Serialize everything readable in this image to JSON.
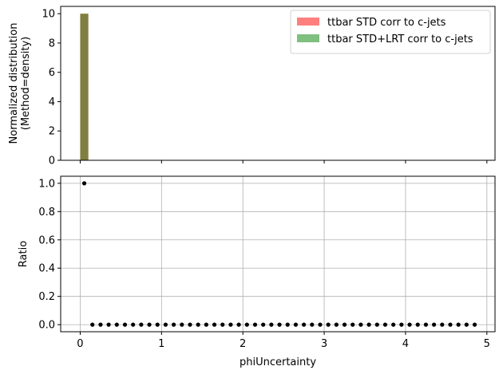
{
  "chart_data": [
    {
      "type": "bar",
      "panel": "top",
      "xlabel": "",
      "ylabel_lines": [
        "Normalized distribution",
        "(Method=density)"
      ],
      "xlim": [
        -0.24,
        5.1
      ],
      "ylim": [
        0,
        10.5
      ],
      "yticks": [
        0,
        2,
        4,
        6,
        8,
        10
      ],
      "xticks": [
        0,
        1,
        2,
        3,
        4,
        5
      ],
      "show_xtick_labels": false,
      "bin_width": 0.1,
      "legend": {
        "placement": "top-right"
      },
      "series": [
        {
          "name": "ttbar STD corr to c-jets",
          "color": "#ff0000",
          "alpha": 0.5,
          "bins": [
            {
              "x0": 0.0,
              "x1": 0.1,
              "value": 10
            }
          ]
        },
        {
          "name": "ttbar STD+LRT corr to c-jets",
          "color": "#008000",
          "alpha": 0.5,
          "bins": [
            {
              "x0": 0.0,
              "x1": 0.1,
              "value": 10
            }
          ]
        }
      ],
      "overlap_color": "#808040"
    },
    {
      "type": "scatter",
      "panel": "bottom",
      "xlabel": "phiUncertainty",
      "ylabel": "Ratio",
      "xlim": [
        -0.24,
        5.1
      ],
      "ylim": [
        -0.05,
        1.05
      ],
      "xticks": [
        0,
        1,
        2,
        3,
        4,
        5
      ],
      "yticks": [
        0.0,
        0.2,
        0.4,
        0.6,
        0.8,
        1.0
      ],
      "ytick_labels": [
        "0.0",
        "0.2",
        "0.4",
        "0.6",
        "0.8",
        "1.0"
      ],
      "grid": true,
      "marker_color": "#000000",
      "points": [
        {
          "x": 0.05,
          "y": 1.0
        },
        {
          "x": 0.15,
          "y": 0.0
        },
        {
          "x": 0.25,
          "y": 0.0
        },
        {
          "x": 0.35,
          "y": 0.0
        },
        {
          "x": 0.45,
          "y": 0.0
        },
        {
          "x": 0.55,
          "y": 0.0
        },
        {
          "x": 0.65,
          "y": 0.0
        },
        {
          "x": 0.75,
          "y": 0.0
        },
        {
          "x": 0.85,
          "y": 0.0
        },
        {
          "x": 0.95,
          "y": 0.0
        },
        {
          "x": 1.05,
          "y": 0.0
        },
        {
          "x": 1.15,
          "y": 0.0
        },
        {
          "x": 1.25,
          "y": 0.0
        },
        {
          "x": 1.35,
          "y": 0.0
        },
        {
          "x": 1.45,
          "y": 0.0
        },
        {
          "x": 1.55,
          "y": 0.0
        },
        {
          "x": 1.65,
          "y": 0.0
        },
        {
          "x": 1.75,
          "y": 0.0
        },
        {
          "x": 1.85,
          "y": 0.0
        },
        {
          "x": 1.95,
          "y": 0.0
        },
        {
          "x": 2.05,
          "y": 0.0
        },
        {
          "x": 2.15,
          "y": 0.0
        },
        {
          "x": 2.25,
          "y": 0.0
        },
        {
          "x": 2.35,
          "y": 0.0
        },
        {
          "x": 2.45,
          "y": 0.0
        },
        {
          "x": 2.55,
          "y": 0.0
        },
        {
          "x": 2.65,
          "y": 0.0
        },
        {
          "x": 2.75,
          "y": 0.0
        },
        {
          "x": 2.85,
          "y": 0.0
        },
        {
          "x": 2.95,
          "y": 0.0
        },
        {
          "x": 3.05,
          "y": 0.0
        },
        {
          "x": 3.15,
          "y": 0.0
        },
        {
          "x": 3.25,
          "y": 0.0
        },
        {
          "x": 3.35,
          "y": 0.0
        },
        {
          "x": 3.45,
          "y": 0.0
        },
        {
          "x": 3.55,
          "y": 0.0
        },
        {
          "x": 3.65,
          "y": 0.0
        },
        {
          "x": 3.75,
          "y": 0.0
        },
        {
          "x": 3.85,
          "y": 0.0
        },
        {
          "x": 3.95,
          "y": 0.0
        },
        {
          "x": 4.05,
          "y": 0.0
        },
        {
          "x": 4.15,
          "y": 0.0
        },
        {
          "x": 4.25,
          "y": 0.0
        },
        {
          "x": 4.35,
          "y": 0.0
        },
        {
          "x": 4.45,
          "y": 0.0
        },
        {
          "x": 4.55,
          "y": 0.0
        },
        {
          "x": 4.65,
          "y": 0.0
        },
        {
          "x": 4.75,
          "y": 0.0
        },
        {
          "x": 4.85,
          "y": 0.0
        }
      ]
    }
  ]
}
